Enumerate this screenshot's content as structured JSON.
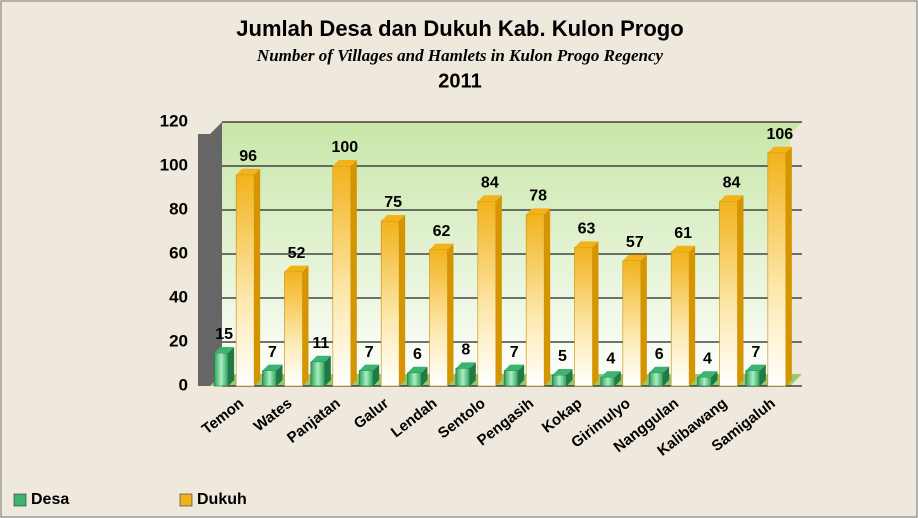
{
  "chart_data": {
    "type": "bar",
    "title": "Jumlah Desa dan Dukuh Kab. Kulon Progo",
    "subtitle": "Number of Villages and Hamlets in Kulon Progo Regency",
    "period": "2011",
    "categories": [
      "Temon",
      "Wates",
      "Panjatan",
      "Galur",
      "Lendah",
      "Sentolo",
      "Pengasih",
      "Kokap",
      "Girimulyo",
      "Nanggulan",
      "Kalibawang",
      "Samigaluh"
    ],
    "series": [
      {
        "name": "Desa",
        "color": "#3cb371",
        "values": [
          15,
          7,
          11,
          7,
          6,
          8,
          7,
          5,
          4,
          6,
          4,
          7
        ]
      },
      {
        "name": "Dukuh",
        "color": "#f2b21c",
        "values": [
          96,
          52,
          100,
          75,
          62,
          84,
          78,
          63,
          57,
          61,
          84,
          106
        ]
      }
    ],
    "ylim": [
      0,
      120
    ],
    "yticks": [
      0,
      20,
      40,
      60,
      80,
      100,
      120
    ],
    "grid": true,
    "legend": "bottom-left"
  }
}
